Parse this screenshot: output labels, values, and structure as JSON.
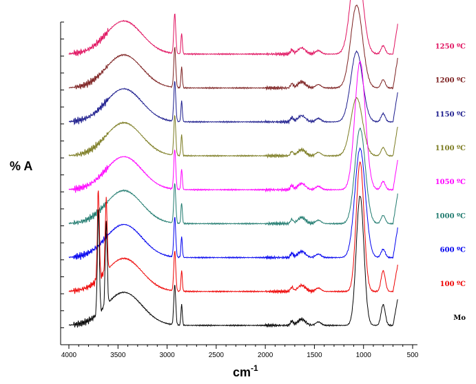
{
  "chart_data": {
    "type": "line",
    "title": "",
    "xlabel": "cm",
    "xlabel_superscript": "-1",
    "ylabel": "% A",
    "xlim": [
      4000,
      500
    ],
    "x_ticks": [
      4000,
      3500,
      3000,
      2500,
      2000,
      1500,
      1000,
      500
    ],
    "x_tick_labels": [
      "4000",
      "3500",
      "3000",
      "2500",
      "2000",
      "1500",
      "1000",
      "500"
    ],
    "grid": false,
    "legend": "right side, one label per trace",
    "series": [
      {
        "name": "1250 ºC",
        "color": "#e0115f",
        "baseline": 10
      },
      {
        "name": "1200 ºC",
        "color": "#7b1e1e",
        "baseline": 9
      },
      {
        "name": "1150 ºC",
        "color": "#1a1a8c",
        "baseline": 8
      },
      {
        "name": "1100 ºC",
        "color": "#7a7a1f",
        "baseline": 7
      },
      {
        "name": "1050 ºC",
        "color": "#ff00ff",
        "baseline": 6
      },
      {
        "name": "1000 ºC",
        "color": "#1f7a6e",
        "baseline": 5
      },
      {
        "name": "600 ºC",
        "color": "#0000ee",
        "baseline": 4
      },
      {
        "name": "100 ºC",
        "color": "#ee0000",
        "baseline": 3
      },
      {
        "name": "Mo",
        "color": "#000000",
        "baseline": 2
      }
    ],
    "peaks_cm1": [
      3700,
      3620,
      3440,
      2920,
      2850,
      1630,
      1080,
      1030,
      800
    ]
  }
}
